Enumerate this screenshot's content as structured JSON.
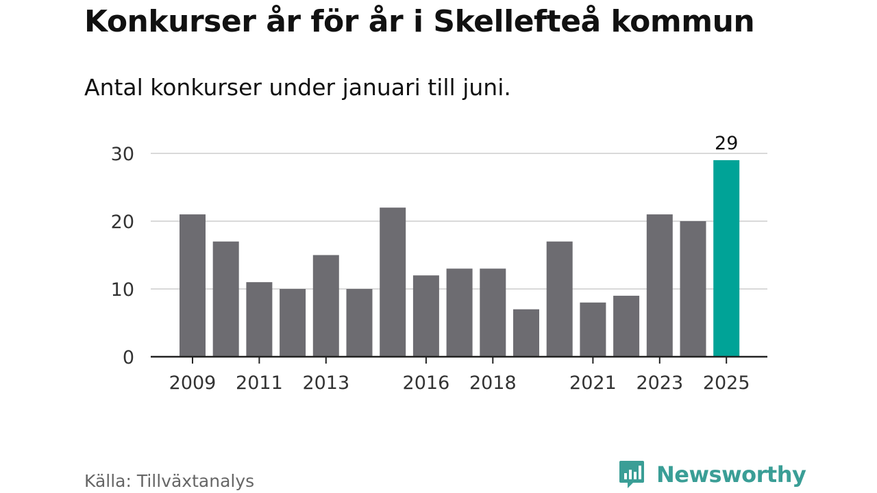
{
  "header": {
    "title": "Konkurser år för år i Skellefteå kommun",
    "subtitle": "Antal konkurser under januari till juni."
  },
  "footer": {
    "source": "Källa: Tillväxtanalys",
    "brand": "Newsworthy"
  },
  "colors": {
    "bar": "#6d6c71",
    "highlight": "#00a397",
    "grid": "#d9d9d9",
    "axis": "#222222",
    "brand": "#3a9e96"
  },
  "chart_data": {
    "type": "bar",
    "title": "Konkurser år för år i Skellefteå kommun",
    "subtitle": "Antal konkurser under januari till juni.",
    "categories": [
      "2009",
      "2010",
      "2011",
      "2012",
      "2013",
      "2014",
      "2015",
      "2016",
      "2017",
      "2018",
      "2019",
      "2020",
      "2021",
      "2022",
      "2023",
      "2024",
      "2025"
    ],
    "values": [
      21,
      17,
      11,
      10,
      15,
      10,
      22,
      12,
      13,
      13,
      7,
      17,
      8,
      9,
      21,
      20,
      29
    ],
    "x_tick_labels": [
      "2009",
      "2011",
      "2013",
      "2016",
      "2018",
      "2021",
      "2023",
      "2025"
    ],
    "y_ticks": [
      0,
      10,
      20,
      30
    ],
    "ylim": [
      0,
      30
    ],
    "highlight_category": "2025",
    "highlight_label": "29",
    "grid": true,
    "legend": "none",
    "xlabel": "",
    "ylabel": ""
  }
}
